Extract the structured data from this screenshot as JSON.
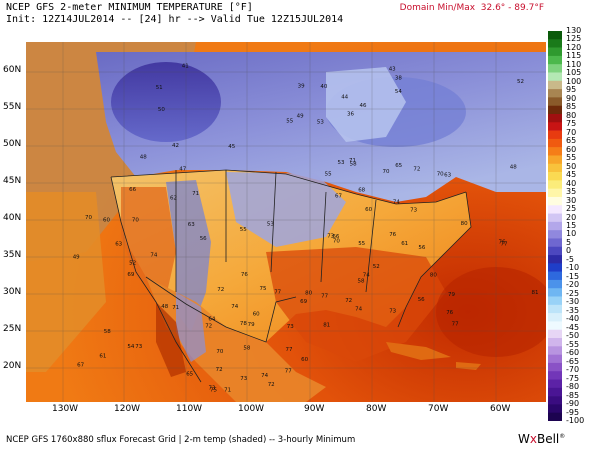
{
  "header": {
    "title": "NCEP GFS 2-meter MINIMUM TEMPERATURE [°F]",
    "init_line": "Init: 12Z14JUL2014 -- [24] hr --> Valid Tue 12Z15JUL2014",
    "domain_minmax": "Domain Min/Max  32.6° - 89.7°F"
  },
  "axes": {
    "latitude_labels": [
      "60N",
      "55N",
      "50N",
      "45N",
      "40N",
      "35N",
      "30N",
      "25N",
      "20N"
    ],
    "longitude_labels": [
      "130W",
      "120W",
      "110W",
      "100W",
      "90W",
      "80W",
      "70W",
      "60W"
    ]
  },
  "colorbar": {
    "labels": [
      "130",
      "125",
      "120",
      "115",
      "110",
      "105",
      "100",
      "95",
      "90",
      "85",
      "80",
      "75",
      "70",
      "65",
      "60",
      "55",
      "50",
      "45",
      "40",
      "35",
      "30",
      "25",
      "20",
      "15",
      "10",
      "5",
      "0",
      "-5",
      "-10",
      "-15",
      "-20",
      "-25",
      "-30",
      "-35",
      "-40",
      "-45",
      "-50",
      "-55",
      "-60",
      "-65",
      "-70",
      "-75",
      "-80",
      "-85",
      "-90",
      "-95",
      "-100"
    ]
  },
  "footer": {
    "text": "NCEP GFS 1760x880 sflux Forecast Grid | 2-m temp (shaded) -- 3-hourly Minimum"
  },
  "brand": {
    "a": "W",
    "b": "x",
    "c": "Bell",
    "reg": "®"
  },
  "station_values": {
    "canada": [
      "53",
      "51",
      "49",
      "48",
      "46",
      "45",
      "43",
      "40",
      "38",
      "36",
      "41",
      "48",
      "50",
      "52",
      "55",
      "54",
      "47",
      "39",
      "44",
      "42"
    ],
    "west": [
      "63",
      "67",
      "61",
      "70",
      "74",
      "71",
      "70",
      "66",
      "49",
      "48",
      "56",
      "69",
      "54",
      "52",
      "60",
      "62",
      "58",
      "65"
    ],
    "central": [
      "56",
      "52",
      "55",
      "53",
      "55",
      "58",
      "60",
      "63",
      "66",
      "64",
      "69",
      "70",
      "72",
      "73",
      "71",
      "74"
    ],
    "east": [
      "56",
      "55",
      "58",
      "53",
      "61",
      "63",
      "65",
      "60",
      "67",
      "68",
      "70",
      "71",
      "72",
      "70",
      "74",
      "73",
      "76"
    ],
    "south": [
      "73",
      "74",
      "77",
      "78",
      "76",
      "75",
      "74",
      "80",
      "81",
      "77",
      "79",
      "72",
      "73"
    ],
    "mexico": [
      "73",
      "77",
      "72",
      "72",
      "71",
      "73",
      "72",
      "60",
      "58",
      "74",
      "70",
      "77",
      "73",
      "75"
    ],
    "ocean": [
      "76",
      "77",
      "79",
      "80",
      "81",
      "80",
      "76",
      "77"
    ]
  }
}
